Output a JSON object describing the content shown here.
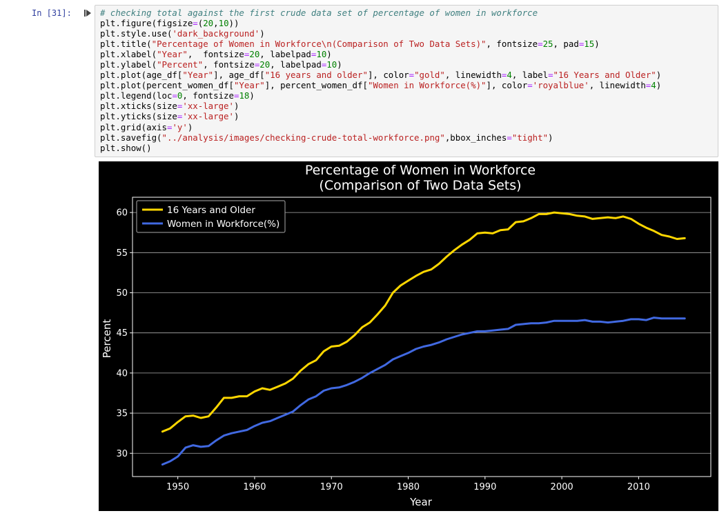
{
  "cell": {
    "prompt": "In [31]:",
    "code_lines": [
      [
        {
          "t": "# checking total against the first crude data set of percentage of women in workforce",
          "c": "tk-c"
        }
      ],
      [
        {
          "t": "plt.figure(figsize"
        },
        {
          "t": "=",
          "c": "tk-o"
        },
        {
          "t": "("
        },
        {
          "t": "20",
          "c": "tk-n"
        },
        {
          "t": ","
        },
        {
          "t": "10",
          "c": "tk-n"
        },
        {
          "t": "))"
        }
      ],
      [
        {
          "t": "plt.style.use("
        },
        {
          "t": "'dark_background'",
          "c": "tk-s"
        },
        {
          "t": ")"
        }
      ],
      [
        {
          "t": "plt.title("
        },
        {
          "t": "\"Percentage of Women in Workforce\\n(Comparison of Two Data Sets)\"",
          "c": "tk-s"
        },
        {
          "t": ", fontsize"
        },
        {
          "t": "=",
          "c": "tk-o"
        },
        {
          "t": "25",
          "c": "tk-n"
        },
        {
          "t": ", pad"
        },
        {
          "t": "=",
          "c": "tk-o"
        },
        {
          "t": "15",
          "c": "tk-n"
        },
        {
          "t": ")"
        }
      ],
      [
        {
          "t": "plt.xlabel("
        },
        {
          "t": "\"Year\"",
          "c": "tk-s"
        },
        {
          "t": ",  fontsize"
        },
        {
          "t": "=",
          "c": "tk-o"
        },
        {
          "t": "20",
          "c": "tk-n"
        },
        {
          "t": ", labelpad"
        },
        {
          "t": "=",
          "c": "tk-o"
        },
        {
          "t": "10",
          "c": "tk-n"
        },
        {
          "t": ")"
        }
      ],
      [
        {
          "t": "plt.ylabel("
        },
        {
          "t": "\"Percent\"",
          "c": "tk-s"
        },
        {
          "t": ", fontsize"
        },
        {
          "t": "=",
          "c": "tk-o"
        },
        {
          "t": "20",
          "c": "tk-n"
        },
        {
          "t": ", labelpad"
        },
        {
          "t": "=",
          "c": "tk-o"
        },
        {
          "t": "10",
          "c": "tk-n"
        },
        {
          "t": ")"
        }
      ],
      [
        {
          "t": "plt.plot(age_df["
        },
        {
          "t": "\"Year\"",
          "c": "tk-s"
        },
        {
          "t": "], age_df["
        },
        {
          "t": "\"16 years and older\"",
          "c": "tk-s"
        },
        {
          "t": "], color"
        },
        {
          "t": "=",
          "c": "tk-o"
        },
        {
          "t": "\"gold\"",
          "c": "tk-s"
        },
        {
          "t": ", linewidth"
        },
        {
          "t": "=",
          "c": "tk-o"
        },
        {
          "t": "4",
          "c": "tk-n"
        },
        {
          "t": ", label"
        },
        {
          "t": "=",
          "c": "tk-o"
        },
        {
          "t": "\"16 Years and Older\"",
          "c": "tk-s"
        },
        {
          "t": ")"
        }
      ],
      [
        {
          "t": "plt.plot(percent_women_df["
        },
        {
          "t": "\"Year\"",
          "c": "tk-s"
        },
        {
          "t": "], percent_women_df["
        },
        {
          "t": "\"Women in Workforce(%)\"",
          "c": "tk-s"
        },
        {
          "t": "], color"
        },
        {
          "t": "=",
          "c": "tk-o"
        },
        {
          "t": "'royalblue'",
          "c": "tk-s"
        },
        {
          "t": ", linewidth"
        },
        {
          "t": "=",
          "c": "tk-o"
        },
        {
          "t": "4",
          "c": "tk-n"
        },
        {
          "t": ")"
        }
      ],
      [
        {
          "t": "plt.legend(loc"
        },
        {
          "t": "=",
          "c": "tk-o"
        },
        {
          "t": "0",
          "c": "tk-n"
        },
        {
          "t": ", fontsize"
        },
        {
          "t": "=",
          "c": "tk-o"
        },
        {
          "t": "18",
          "c": "tk-n"
        },
        {
          "t": ")"
        }
      ],
      [
        {
          "t": "plt.xticks(size"
        },
        {
          "t": "=",
          "c": "tk-o"
        },
        {
          "t": "'xx-large'",
          "c": "tk-s"
        },
        {
          "t": ")"
        }
      ],
      [
        {
          "t": "plt.yticks(size"
        },
        {
          "t": "=",
          "c": "tk-o"
        },
        {
          "t": "'xx-large'",
          "c": "tk-s"
        },
        {
          "t": ")"
        }
      ],
      [
        {
          "t": "plt.grid(axis"
        },
        {
          "t": "=",
          "c": "tk-o"
        },
        {
          "t": "'y'",
          "c": "tk-s"
        },
        {
          "t": ")"
        }
      ],
      [
        {
          "t": "plt.savefig("
        },
        {
          "t": "\"../analysis/images/checking-crude-total-workforce.png\"",
          "c": "tk-s"
        },
        {
          "t": ",bbox_inches"
        },
        {
          "t": "=",
          "c": "tk-o"
        },
        {
          "t": "\"tight\"",
          "c": "tk-s"
        },
        {
          "t": ")"
        }
      ],
      [
        {
          "t": "plt.show()"
        }
      ]
    ]
  },
  "chart_data": {
    "type": "line",
    "title": [
      "Percentage of Women in Workforce",
      "(Comparison of Two Data Sets)"
    ],
    "xlabel": "Year",
    "ylabel": "Percent",
    "xlim": [
      1944.1,
      2019.4
    ],
    "ylim": [
      27.1,
      61.9
    ],
    "xticks": [
      1950,
      1960,
      1970,
      1980,
      1990,
      2000,
      2010
    ],
    "yticks": [
      30,
      35,
      40,
      45,
      50,
      55,
      60
    ],
    "grid": "y",
    "legend_position": "top-left",
    "background": "#000000",
    "series": [
      {
        "name": "16 Years and Older",
        "color": "#ffd700",
        "linewidth": 3,
        "x": [
          1948,
          1949,
          1950,
          1951,
          1952,
          1953,
          1954,
          1955,
          1956,
          1957,
          1958,
          1959,
          1960,
          1961,
          1962,
          1963,
          1964,
          1965,
          1966,
          1967,
          1968,
          1969,
          1970,
          1971,
          1972,
          1973,
          1974,
          1975,
          1976,
          1977,
          1978,
          1979,
          1980,
          1981,
          1982,
          1983,
          1984,
          1985,
          1986,
          1987,
          1988,
          1989,
          1990,
          1991,
          1992,
          1993,
          1994,
          1995,
          1996,
          1997,
          1998,
          1999,
          2000,
          2001,
          2002,
          2003,
          2004,
          2005,
          2006,
          2007,
          2008,
          2009,
          2010,
          2011,
          2012,
          2013,
          2014,
          2015,
          2016
        ],
        "values": [
          32.7,
          33.1,
          33.9,
          34.6,
          34.7,
          34.4,
          34.6,
          35.7,
          36.9,
          36.9,
          37.1,
          37.1,
          37.7,
          38.1,
          37.9,
          38.3,
          38.7,
          39.3,
          40.3,
          41.1,
          41.6,
          42.7,
          43.3,
          43.4,
          43.9,
          44.7,
          45.7,
          46.3,
          47.3,
          48.4,
          50.0,
          50.9,
          51.5,
          52.1,
          52.6,
          52.9,
          53.6,
          54.5,
          55.3,
          56.0,
          56.6,
          57.4,
          57.5,
          57.4,
          57.8,
          57.9,
          58.8,
          58.9,
          59.3,
          59.8,
          59.8,
          60.0,
          59.9,
          59.8,
          59.6,
          59.5,
          59.2,
          59.3,
          59.4,
          59.3,
          59.5,
          59.2,
          58.6,
          58.1,
          57.7,
          57.2,
          57.0,
          56.7,
          56.8
        ]
      },
      {
        "name": "Women in Workforce(%)",
        "color": "#4169e1",
        "linewidth": 3,
        "x": [
          1948,
          1949,
          1950,
          1951,
          1952,
          1953,
          1954,
          1955,
          1956,
          1957,
          1958,
          1959,
          1960,
          1961,
          1962,
          1963,
          1964,
          1965,
          1966,
          1967,
          1968,
          1969,
          1970,
          1971,
          1972,
          1973,
          1974,
          1975,
          1976,
          1977,
          1978,
          1979,
          1980,
          1981,
          1982,
          1983,
          1984,
          1985,
          1986,
          1987,
          1988,
          1989,
          1990,
          1991,
          1992,
          1993,
          1994,
          1995,
          1996,
          1997,
          1998,
          1999,
          2000,
          2001,
          2002,
          2003,
          2004,
          2005,
          2006,
          2007,
          2008,
          2009,
          2010,
          2011,
          2012,
          2013,
          2014,
          2015,
          2016
        ],
        "values": [
          28.6,
          29.0,
          29.6,
          30.7,
          31.0,
          30.8,
          30.9,
          31.6,
          32.2,
          32.5,
          32.7,
          32.9,
          33.4,
          33.8,
          34.0,
          34.4,
          34.8,
          35.2,
          36.0,
          36.7,
          37.1,
          37.8,
          38.1,
          38.2,
          38.5,
          38.9,
          39.4,
          40.0,
          40.5,
          41.0,
          41.7,
          42.1,
          42.5,
          43.0,
          43.3,
          43.5,
          43.8,
          44.2,
          44.5,
          44.8,
          45.0,
          45.2,
          45.2,
          45.3,
          45.4,
          45.5,
          46.0,
          46.1,
          46.2,
          46.2,
          46.3,
          46.5,
          46.5,
          46.5,
          46.5,
          46.6,
          46.4,
          46.4,
          46.3,
          46.4,
          46.5,
          46.7,
          46.7,
          46.6,
          46.9,
          46.8,
          46.8,
          46.8,
          46.8
        ]
      }
    ]
  }
}
